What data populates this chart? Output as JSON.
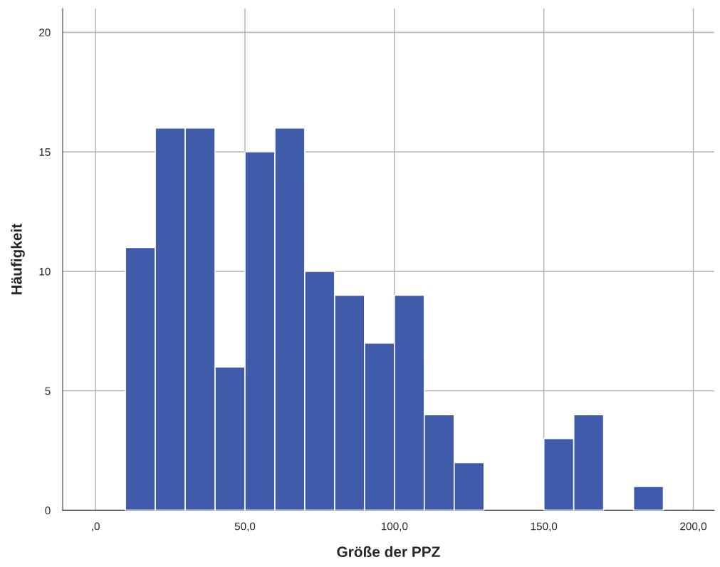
{
  "chart_data": {
    "type": "histogram",
    "xlabel": "Größe der PPZ",
    "ylabel": "Häufigkeit",
    "bins": [
      10,
      20,
      30,
      40,
      50,
      60,
      70,
      80,
      90,
      100,
      110,
      120,
      130,
      140,
      150,
      160,
      170,
      180,
      190
    ],
    "values": [
      11,
      16,
      16,
      6,
      15,
      16,
      10,
      9,
      7,
      9,
      4,
      2,
      0,
      0,
      3,
      4,
      0,
      1
    ],
    "color": "#3f5ba9",
    "xlim": [
      -11,
      207
    ],
    "xticks": [
      {
        "value": 0,
        "label": ",0"
      },
      {
        "value": 50,
        "label": "50,0"
      },
      {
        "value": 100,
        "label": "100,0"
      },
      {
        "value": 150,
        "label": "150,0"
      },
      {
        "value": 200,
        "label": "200,0"
      }
    ],
    "ylim": [
      0,
      21
    ],
    "yticks": [
      0,
      5,
      10,
      15,
      20
    ],
    "grid": true
  }
}
